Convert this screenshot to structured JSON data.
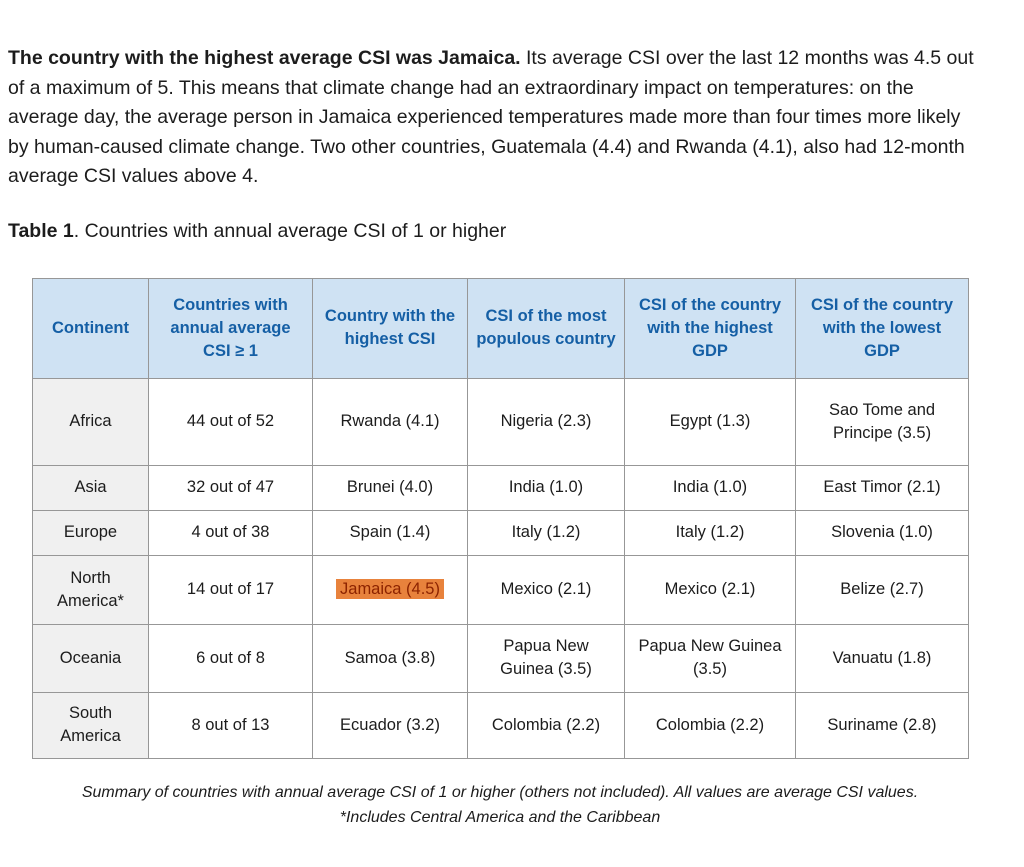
{
  "intro": {
    "bold": "The country with the highest average CSI was Jamaica.",
    "rest": " Its average CSI over the last 12 months was 4.5 out of a maximum of 5. This means that climate change had an extraordinary impact on temperatures: on the average day, the average person in Jamaica experienced temperatures made more than four times more likely by human-caused climate change. Two other countries, Guatemala (4.4) and Rwanda (4.1), also had 12-month average CSI values above 4."
  },
  "caption": {
    "bold": "Table 1",
    "rest": ". Countries with annual average CSI of 1 or higher"
  },
  "table": {
    "headers": [
      "Continent",
      "Countries with annual average CSI ≥ 1",
      "Country with the highest CSI",
      "CSI of the most populous country",
      "CSI of the country with the highest GDP",
      "CSI of the country with the lowest GDP"
    ],
    "rows": [
      {
        "cells": [
          "Africa",
          "44 out of 52",
          "Rwanda (4.1)",
          "Nigeria (2.3)",
          "Egypt (1.3)",
          "Sao Tome and Principe (3.5)"
        ],
        "highlight_col": null
      },
      {
        "cells": [
          "Asia",
          "32 out of 47",
          "Brunei (4.0)",
          "India (1.0)",
          "India (1.0)",
          "East Timor (2.1)"
        ],
        "highlight_col": null
      },
      {
        "cells": [
          "Europe",
          "4 out of 38",
          "Spain (1.4)",
          "Italy (1.2)",
          "Italy (1.2)",
          "Slovenia (1.0)"
        ],
        "highlight_col": null
      },
      {
        "cells": [
          "North America*",
          "14 out of 17",
          "Jamaica (4.5)",
          "Mexico (2.1)",
          "Mexico (2.1)",
          "Belize (2.7)"
        ],
        "highlight_col": 2
      },
      {
        "cells": [
          "Oceania",
          "6 out of 8",
          "Samoa (3.8)",
          "Papua New Guinea (3.5)",
          "Papua New Guinea (3.5)",
          "Vanuatu (1.8)"
        ],
        "highlight_col": null
      },
      {
        "cells": [
          "South America",
          "8 out of 13",
          "Ecuador (3.2)",
          "Colombia (2.2)",
          "Colombia (2.2)",
          "Suriname (2.8)"
        ],
        "highlight_col": null
      }
    ]
  },
  "footnote": {
    "line1": "Summary of countries with annual average CSI of 1 or higher (others not included). All values are average CSI values.",
    "line2": "*Includes Central America and the Caribbean"
  },
  "colors": {
    "header_bg": "#cfe2f3",
    "header_text": "#155fa5",
    "row_label_bg": "#f0f0f0",
    "border": "#979797",
    "highlight_bg": "#e8823c",
    "highlight_text": "#8c2300",
    "body_text": "#1c1c1c"
  }
}
